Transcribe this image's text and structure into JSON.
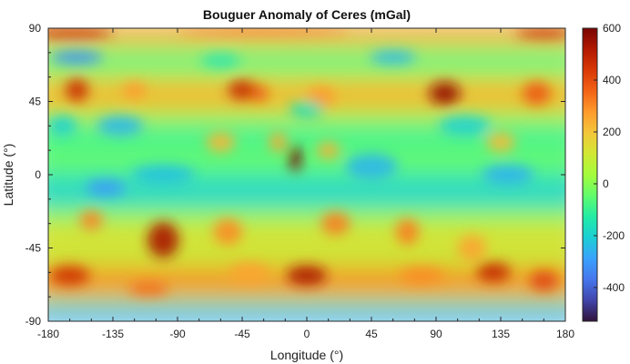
{
  "chart_data": {
    "type": "heatmap",
    "title": "Bouguer Anomaly of Ceres (mGal)",
    "xlabel": "Longitude (°)",
    "ylabel": "Latitude (°)",
    "xlim": [
      -180,
      180
    ],
    "ylim": [
      -90,
      90
    ],
    "x_ticks": [
      -180,
      -135,
      -90,
      -45,
      0,
      45,
      90,
      135,
      180
    ],
    "y_ticks": [
      90,
      45,
      0,
      -45,
      -90
    ],
    "colorbar": {
      "min": -530,
      "max": 600,
      "ticks": [
        600,
        400,
        200,
        0,
        -200,
        -400
      ],
      "colormap": "turbo",
      "stops": [
        "#30123b",
        "#4145ab",
        "#4675ed",
        "#39a2fc",
        "#1bcfd4",
        "#24eca6",
        "#61fc6c",
        "#a4fc3b",
        "#d1e834",
        "#f3c63a",
        "#fe9b2d",
        "#f36315",
        "#d93806",
        "#b11901",
        "#7a0402"
      ]
    },
    "grid": false,
    "features": [
      {
        "lon": -163,
        "lat": 87,
        "value": 480,
        "r_lon": 28,
        "r_lat": 3
      },
      {
        "lon": 165,
        "lat": 87,
        "value": 470,
        "r_lon": 20,
        "r_lat": 3
      },
      {
        "lon": -30,
        "lat": 88,
        "value": 330,
        "r_lon": 60,
        "r_lat": 2
      },
      {
        "lon": -160,
        "lat": 52,
        "value": 470,
        "r_lon": 8,
        "r_lat": 7
      },
      {
        "lon": -45,
        "lat": 52,
        "value": 480,
        "r_lon": 10,
        "r_lat": 6
      },
      {
        "lon": -33,
        "lat": 50,
        "value": 380,
        "r_lon": 6,
        "r_lat": 5
      },
      {
        "lon": 96,
        "lat": 50,
        "value": 560,
        "r_lon": 11,
        "r_lat": 7
      },
      {
        "lon": 160,
        "lat": 50,
        "value": 380,
        "r_lon": 10,
        "r_lat": 7
      },
      {
        "lon": -120,
        "lat": 52,
        "value": 280,
        "r_lon": 8,
        "r_lat": 5
      },
      {
        "lon": 10,
        "lat": 48,
        "value": 280,
        "r_lon": 10,
        "r_lat": 6
      },
      {
        "lon": -8,
        "lat": 10,
        "value": 600,
        "r_lon": 4,
        "r_lat": 8
      },
      {
        "lon": -20,
        "lat": 20,
        "value": 250,
        "r_lon": 6,
        "r_lat": 6
      },
      {
        "lon": 15,
        "lat": 15,
        "value": 240,
        "r_lon": 8,
        "r_lat": 5
      },
      {
        "lon": -60,
        "lat": 20,
        "value": 230,
        "r_lon": 10,
        "r_lat": 6
      },
      {
        "lon": 135,
        "lat": 20,
        "value": 220,
        "r_lon": 10,
        "r_lat": 6
      },
      {
        "lon": -100,
        "lat": -40,
        "value": 530,
        "r_lon": 11,
        "r_lat": 11
      },
      {
        "lon": -55,
        "lat": -35,
        "value": 300,
        "r_lon": 10,
        "r_lat": 8
      },
      {
        "lon": 20,
        "lat": -30,
        "value": 320,
        "r_lon": 10,
        "r_lat": 7
      },
      {
        "lon": 70,
        "lat": -35,
        "value": 320,
        "r_lon": 8,
        "r_lat": 8
      },
      {
        "lon": 115,
        "lat": -45,
        "value": 260,
        "r_lon": 10,
        "r_lat": 8
      },
      {
        "lon": -150,
        "lat": -28,
        "value": 310,
        "r_lon": 8,
        "r_lat": 6
      },
      {
        "lon": -165,
        "lat": -62,
        "value": 460,
        "r_lon": 14,
        "r_lat": 6
      },
      {
        "lon": -40,
        "lat": -60,
        "value": 260,
        "r_lon": 14,
        "r_lat": 6
      },
      {
        "lon": 0,
        "lat": -62,
        "value": 530,
        "r_lon": 14,
        "r_lat": 6
      },
      {
        "lon": 130,
        "lat": -60,
        "value": 480,
        "r_lon": 12,
        "r_lat": 6
      },
      {
        "lon": 165,
        "lat": -65,
        "value": 420,
        "r_lon": 10,
        "r_lat": 6
      },
      {
        "lon": 80,
        "lat": -62,
        "value": 300,
        "r_lon": 16,
        "r_lat": 5
      },
      {
        "lon": -110,
        "lat": -70,
        "value": 350,
        "r_lon": 14,
        "r_lat": 4
      },
      {
        "lon": -140,
        "lat": -8,
        "value": -300,
        "r_lon": 14,
        "r_lat": 5
      },
      {
        "lon": -130,
        "lat": 30,
        "value": -250,
        "r_lon": 16,
        "r_lat": 6
      },
      {
        "lon": -100,
        "lat": 0,
        "value": -230,
        "r_lon": 22,
        "r_lat": 6
      },
      {
        "lon": 45,
        "lat": 5,
        "value": -250,
        "r_lon": 18,
        "r_lat": 8
      },
      {
        "lon": 140,
        "lat": 0,
        "value": -260,
        "r_lon": 18,
        "r_lat": 6
      },
      {
        "lon": 110,
        "lat": 30,
        "value": -200,
        "r_lon": 18,
        "r_lat": 6
      },
      {
        "lon": -170,
        "lat": 30,
        "value": -200,
        "r_lon": 10,
        "r_lat": 6
      },
      {
        "lon": -160,
        "lat": 72,
        "value": -320,
        "r_lon": 18,
        "r_lat": 4
      },
      {
        "lon": 60,
        "lat": 72,
        "value": -250,
        "r_lon": 16,
        "r_lat": 4
      },
      {
        "lon": -60,
        "lat": 70,
        "value": -150,
        "r_lon": 14,
        "r_lat": 4
      },
      {
        "lon": 0,
        "lat": 40,
        "value": -160,
        "r_lon": 12,
        "r_lat": 5
      }
    ]
  }
}
